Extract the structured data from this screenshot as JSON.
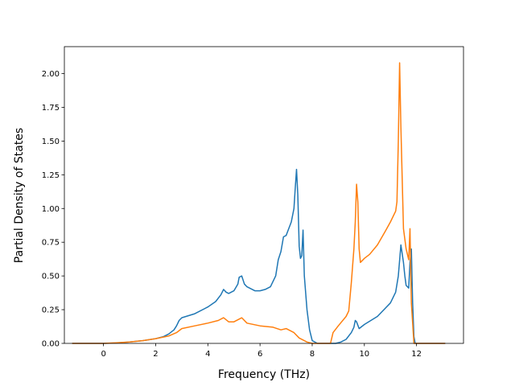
{
  "chart_data": {
    "type": "line",
    "title": "",
    "xlabel": "Frequency (THz)",
    "ylabel": "Partial Density of States",
    "xlim": [
      -1.5,
      13.8
    ],
    "ylim": [
      0,
      2.2
    ],
    "x_ticks": [
      0,
      2,
      4,
      6,
      8,
      10,
      12
    ],
    "y_ticks": [
      0,
      0.25,
      0.5,
      0.75,
      1.0,
      1.25,
      1.5,
      1.75,
      2.0
    ],
    "x_tick_labels": [
      "0",
      "2",
      "4",
      "6",
      "8",
      "10",
      "12"
    ],
    "y_tick_labels": [
      "0.00",
      "0.25",
      "0.50",
      "0.75",
      "1.00",
      "1.25",
      "1.50",
      "1.75",
      "2.00"
    ],
    "grid": false,
    "legend": "none",
    "series": [
      {
        "color": "#1f77b4",
        "points": [
          [
            -1.2,
            0
          ],
          [
            0,
            0
          ],
          [
            0.5,
            0.003
          ],
          [
            1.0,
            0.01
          ],
          [
            1.5,
            0.02
          ],
          [
            2.0,
            0.035
          ],
          [
            2.3,
            0.05
          ],
          [
            2.5,
            0.07
          ],
          [
            2.7,
            0.1
          ],
          [
            2.8,
            0.13
          ],
          [
            2.9,
            0.17
          ],
          [
            3.0,
            0.19
          ],
          [
            3.5,
            0.22
          ],
          [
            4.0,
            0.27
          ],
          [
            4.3,
            0.31
          ],
          [
            4.5,
            0.36
          ],
          [
            4.6,
            0.4
          ],
          [
            4.7,
            0.38
          ],
          [
            4.8,
            0.37
          ],
          [
            5.0,
            0.39
          ],
          [
            5.15,
            0.44
          ],
          [
            5.2,
            0.49
          ],
          [
            5.3,
            0.5
          ],
          [
            5.4,
            0.44
          ],
          [
            5.5,
            0.42
          ],
          [
            5.8,
            0.39
          ],
          [
            6.0,
            0.39
          ],
          [
            6.2,
            0.4
          ],
          [
            6.4,
            0.42
          ],
          [
            6.6,
            0.5
          ],
          [
            6.7,
            0.62
          ],
          [
            6.8,
            0.68
          ],
          [
            6.9,
            0.79
          ],
          [
            7.0,
            0.8
          ],
          [
            7.1,
            0.85
          ],
          [
            7.2,
            0.9
          ],
          [
            7.3,
            1.0
          ],
          [
            7.35,
            1.15
          ],
          [
            7.4,
            1.29
          ],
          [
            7.45,
            1.1
          ],
          [
            7.5,
            0.72
          ],
          [
            7.55,
            0.63
          ],
          [
            7.6,
            0.65
          ],
          [
            7.65,
            0.84
          ],
          [
            7.7,
            0.5
          ],
          [
            7.8,
            0.25
          ],
          [
            7.9,
            0.1
          ],
          [
            8.0,
            0.02
          ],
          [
            8.2,
            0,
            "gap-start"
          ],
          [
            8.9,
            0
          ],
          [
            9.1,
            0.01
          ],
          [
            9.3,
            0.03
          ],
          [
            9.5,
            0.08
          ],
          [
            9.6,
            0.12
          ],
          [
            9.65,
            0.17
          ],
          [
            9.7,
            0.16
          ],
          [
            9.8,
            0.11
          ],
          [
            10.0,
            0.14
          ],
          [
            10.5,
            0.2
          ],
          [
            11.0,
            0.3
          ],
          [
            11.2,
            0.38
          ],
          [
            11.3,
            0.5
          ],
          [
            11.4,
            0.73
          ],
          [
            11.5,
            0.6
          ],
          [
            11.55,
            0.5
          ],
          [
            11.6,
            0.43
          ],
          [
            11.7,
            0.41
          ],
          [
            11.75,
            0.6
          ],
          [
            11.8,
            0.7
          ],
          [
            11.85,
            0.3
          ],
          [
            11.9,
            0.05
          ],
          [
            11.95,
            0
          ],
          [
            13.1,
            0
          ]
        ]
      },
      {
        "color": "#ff7f0e",
        "points": [
          [
            -1.2,
            0
          ],
          [
            0,
            0
          ],
          [
            0.5,
            0.004
          ],
          [
            1.0,
            0.01
          ],
          [
            1.5,
            0.02
          ],
          [
            2.0,
            0.035
          ],
          [
            2.5,
            0.055
          ],
          [
            2.8,
            0.08
          ],
          [
            3.0,
            0.11
          ],
          [
            3.5,
            0.13
          ],
          [
            4.0,
            0.15
          ],
          [
            4.4,
            0.17
          ],
          [
            4.6,
            0.19
          ],
          [
            4.8,
            0.16
          ],
          [
            5.0,
            0.16
          ],
          [
            5.2,
            0.18
          ],
          [
            5.3,
            0.19
          ],
          [
            5.5,
            0.15
          ],
          [
            6.0,
            0.13
          ],
          [
            6.5,
            0.12
          ],
          [
            6.8,
            0.1
          ],
          [
            7.0,
            0.11
          ],
          [
            7.3,
            0.08
          ],
          [
            7.5,
            0.04
          ],
          [
            7.8,
            0.01
          ],
          [
            8.0,
            0
          ],
          [
            8.7,
            0
          ],
          [
            8.8,
            0.08
          ],
          [
            9.0,
            0.13
          ],
          [
            9.3,
            0.2
          ],
          [
            9.4,
            0.24
          ],
          [
            9.5,
            0.45
          ],
          [
            9.6,
            0.7
          ],
          [
            9.65,
            0.9
          ],
          [
            9.7,
            1.18
          ],
          [
            9.75,
            1.05
          ],
          [
            9.8,
            0.7
          ],
          [
            9.85,
            0.6
          ],
          [
            10.0,
            0.63
          ],
          [
            10.2,
            0.66
          ],
          [
            10.5,
            0.73
          ],
          [
            10.8,
            0.83
          ],
          [
            11.0,
            0.9
          ],
          [
            11.2,
            0.98
          ],
          [
            11.25,
            1.05
          ],
          [
            11.3,
            1.5
          ],
          [
            11.35,
            2.08
          ],
          [
            11.4,
            1.6
          ],
          [
            11.5,
            0.85
          ],
          [
            11.6,
            0.7
          ],
          [
            11.7,
            0.62
          ],
          [
            11.75,
            0.85
          ],
          [
            11.8,
            0.3
          ],
          [
            11.9,
            0
          ],
          [
            13.1,
            0
          ]
        ]
      }
    ]
  }
}
